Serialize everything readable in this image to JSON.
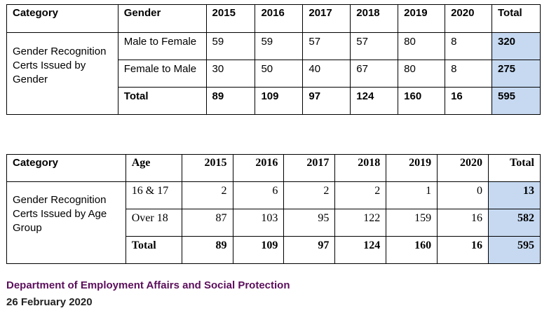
{
  "table1": {
    "headers": [
      "Category",
      "Gender",
      "2015",
      "2016",
      "2017",
      "2018",
      "2019",
      "2020",
      "Total"
    ],
    "category": "Gender Recognition Certs Issued by Gender",
    "rows": [
      {
        "label": "Male to Female",
        "values": [
          "59",
          "59",
          "57",
          "57",
          "80",
          "8"
        ],
        "total": "320"
      },
      {
        "label": "Female to Male",
        "values": [
          "30",
          "50",
          "40",
          "67",
          "80",
          "8"
        ],
        "total": "275"
      }
    ],
    "total_row": {
      "label": "Total",
      "values": [
        "89",
        "109",
        "97",
        "124",
        "160",
        "16"
      ],
      "total": "595"
    }
  },
  "table2": {
    "headers": [
      "Category",
      "Age",
      "2015",
      "2016",
      "2017",
      "2018",
      "2019",
      "2020",
      "Total"
    ],
    "category": "Gender Recognition Certs Issued by Age Group",
    "rows": [
      {
        "label": "16 & 17",
        "values": [
          "2",
          "6",
          "2",
          "2",
          "1",
          "0"
        ],
        "total": "13"
      },
      {
        "label": "Over 18",
        "values": [
          "87",
          "103",
          "95",
          "122",
          "159",
          "16"
        ],
        "total": "582"
      }
    ],
    "total_row": {
      "label": "Total",
      "values": [
        "89",
        "109",
        "97",
        "124",
        "160",
        "16"
      ],
      "total": "595"
    }
  },
  "footer": {
    "department": "Department of Employment Affairs and Social Protection",
    "date": "26 February 2020"
  },
  "colors": {
    "highlight": "#c6d9f1",
    "department_text": "#5b0f5b"
  }
}
